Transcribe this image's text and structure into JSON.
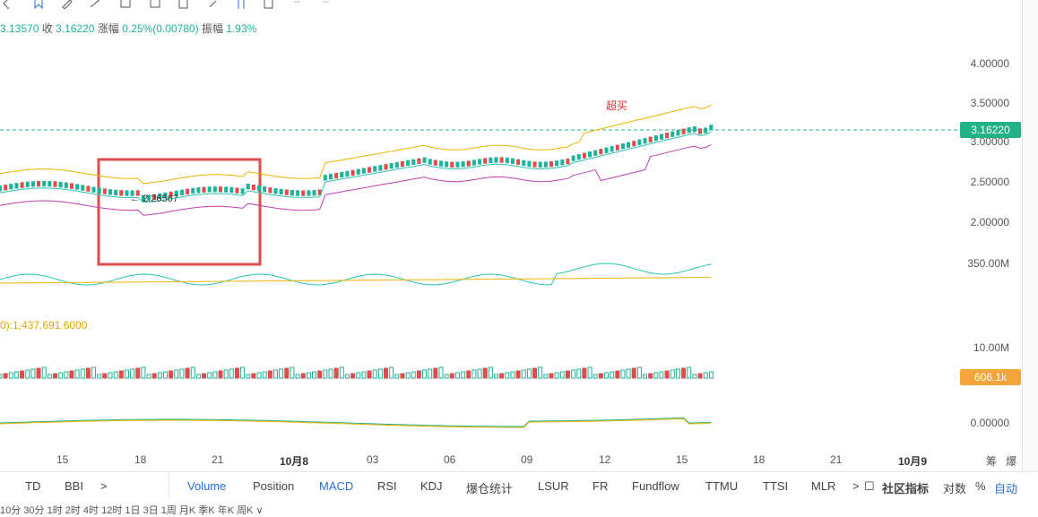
{
  "toolbar": {
    "icons": [
      "bookmark-icon",
      "pencil-icon",
      "line-tool-icon",
      "clear-icon",
      "edit-icon",
      "attach-icon",
      "fork-icon",
      "doc-icon",
      "undo-icon",
      "redo-icon"
    ]
  },
  "ohlc": {
    "open_value": "3.13570",
    "close_label": "收",
    "close_value": "3.16220",
    "change_label": "涨幅",
    "change_value": "0.25%(0.00780)",
    "amp_label": "振幅",
    "amp_value": "1.93%"
  },
  "price_axis": [
    "4.00000",
    "3.50000",
    "3.00000",
    "2.50000",
    "2.00000",
    "350.00M"
  ],
  "current_price": "3.16220",
  "volume_axis": [
    "10.00M",
    "0.00000"
  ],
  "volume_tag": "606.1k",
  "volume_indicator": "0):1,437,691.6000",
  "callout_low": "← 2.26567",
  "overbuy_label": "超买",
  "x_axis": [
    {
      "label": "15",
      "bold": false
    },
    {
      "label": "18",
      "bold": false
    },
    {
      "label": "21",
      "bold": false
    },
    {
      "label": "10月8",
      "bold": true
    },
    {
      "label": "03",
      "bold": false
    },
    {
      "label": "06",
      "bold": false
    },
    {
      "label": "09",
      "bold": false
    },
    {
      "label": "12",
      "bold": false
    },
    {
      "label": "15",
      "bold": false
    },
    {
      "label": "18",
      "bold": false
    },
    {
      "label": "21",
      "bold": false
    },
    {
      "label": "10月9",
      "bold": true
    }
  ],
  "axis_right_labels": [
    "筹",
    "爆"
  ],
  "bottom_tabs": {
    "left": [
      "TD",
      "BBI",
      ">"
    ],
    "indicators": [
      "Volume",
      "Position",
      "MACD",
      "RSI",
      "KDJ",
      "爆仓统计",
      "LSUR",
      "FR",
      "Fundflow",
      "TTMU",
      "TTSI",
      "MLR"
    ],
    "active": [
      "Volume",
      "MACD"
    ],
    "community_label": "社区指标",
    "log_label": "对数",
    "pct_label": "%",
    "auto_label": "自动"
  },
  "time_row": "10分  30分  1时  2时  4时  12时  1日  3日  1周  月K  季K  年K  周K  ∨",
  "colors": {
    "up": "#1bb39a",
    "down": "#e04b4b",
    "boll_upper": "#f0b400",
    "boll_lower": "#c23fb0",
    "ma": "#2bc3b4",
    "highlight_box": "#e04b4b",
    "price_tag": "#21b386",
    "volume_tag": "#f2a53a",
    "accent": "#2a6fd6"
  }
}
